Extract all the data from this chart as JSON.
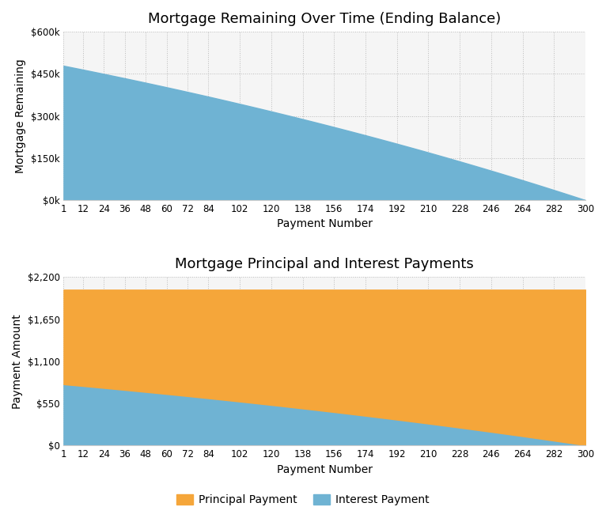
{
  "title1": "Mortgage Remaining Over Time (Ending Balance)",
  "title2": "Mortgage Principal and Interest Payments",
  "xlabel": "Payment Number",
  "ylabel1": "Mortgage Remaining",
  "ylabel2": "Payment Amount",
  "n_payments": 300,
  "principal": 480000,
  "annual_rate": 0.02,
  "xticks": [
    1,
    12,
    24,
    36,
    48,
    60,
    72,
    84,
    102,
    120,
    138,
    156,
    174,
    192,
    210,
    228,
    246,
    264,
    282,
    300
  ],
  "yticks1": [
    0,
    150000,
    300000,
    450000,
    600000
  ],
  "ytick_labels1": [
    "$0k",
    "$150k",
    "$300k",
    "$450k",
    "$600k"
  ],
  "yticks2": [
    0,
    550,
    1100,
    1650,
    2200
  ],
  "ytick_labels2": [
    "$0",
    "$550",
    "$1,100",
    "$1,650",
    "$2,200"
  ],
  "area_color1": "#6fb3d3",
  "area_color2_interest": "#6fb3d3",
  "area_color2_principal": "#f5a63a",
  "bg_color": "#f5f5f5",
  "grid_color": "#bbbbbb",
  "title_fontsize": 13,
  "label_fontsize": 10,
  "tick_fontsize": 8.5,
  "legend_fontsize": 10,
  "legend_label_principal": "Principal Payment",
  "legend_label_interest": "Interest Payment"
}
